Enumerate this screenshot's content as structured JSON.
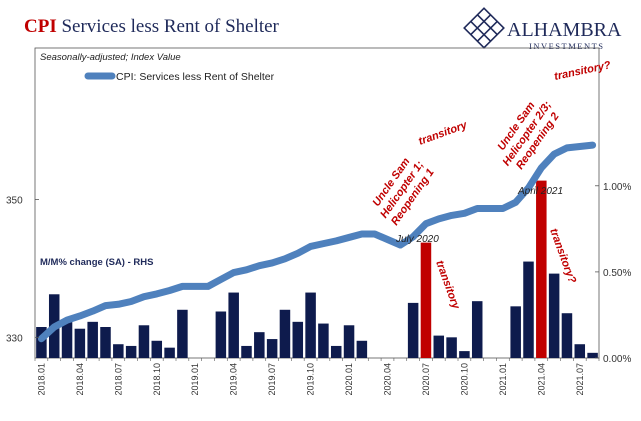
{
  "header": {
    "title_highlight": "CPI",
    "title_rest": " Services less Rent of Shelter",
    "brand_name": "ALHAMBRA",
    "brand_sub": "INVESTMENTS",
    "brand_logo": "diamond-lattice-logo"
  },
  "colors": {
    "line": "#4f81bd",
    "bar": "#0e1b4d",
    "bar_highlight": "#c00000",
    "title_accent": "#c00000",
    "annotation": "#c00000"
  },
  "chart_data": {
    "type": "line+bar",
    "note": "Seasonally-adjusted; Index Value",
    "rhs_label": "M/M% change (SA) - RHS",
    "legend": "CPI: Services less Rent of Shelter",
    "x_categories": [
      "2018.01",
      "2018.02",
      "2018.03",
      "2018.04",
      "2018.05",
      "2018.06",
      "2018.07",
      "2018.08",
      "2018.09",
      "2018.10",
      "2018.11",
      "2018.12",
      "2019.01",
      "2019.02",
      "2019.03",
      "2019.04",
      "2019.05",
      "2019.06",
      "2019.07",
      "2019.08",
      "2019.09",
      "2019.10",
      "2019.11",
      "2019.12",
      "2020.01",
      "2020.02",
      "2020.03",
      "2020.04",
      "2020.05",
      "2020.06",
      "2020.07",
      "2020.08",
      "2020.09",
      "2020.10",
      "2020.11",
      "2020.12",
      "2021.01",
      "2021.02",
      "2021.03",
      "2021.04",
      "2021.05",
      "2021.06",
      "2021.07",
      "2021.08"
    ],
    "x_tick_labels": [
      "2018.01",
      "2018.04",
      "2018.07",
      "2018.10",
      "2019.01",
      "2019.04",
      "2019.07",
      "2019.10",
      "2020.01",
      "2020.04",
      "2020.07",
      "2020.10",
      "2021.01",
      "2021.04",
      "2021.07"
    ],
    "left_axis": {
      "ticks": [
        "330",
        "350"
      ],
      "ylim": [
        327,
        372
      ]
    },
    "right_axis": {
      "ticks": [
        "0.00%",
        "0.50%",
        "1.00%"
      ],
      "ylim": [
        0,
        1.8
      ]
    },
    "line_series": {
      "name": "CPI: Services less Rent of Shelter",
      "values": [
        329.8,
        331.5,
        332.5,
        333.1,
        333.8,
        334.6,
        334.8,
        335.2,
        335.9,
        336.3,
        336.8,
        337.4,
        337.4,
        337.4,
        338.4,
        339.4,
        339.8,
        340.4,
        340.8,
        341.4,
        342.2,
        343.2,
        343.6,
        344.0,
        344.5,
        345.0,
        345.0,
        344.2,
        343.4,
        344.6,
        346.5,
        347.2,
        347.7,
        348.0,
        348.7,
        348.7,
        348.7,
        349.6,
        351.7,
        354.6,
        356.6,
        357.5,
        357.7,
        357.9
      ]
    },
    "bar_series": {
      "name": "M/M% change (SA)",
      "values": [
        0.18,
        0.37,
        0.21,
        0.17,
        0.21,
        0.18,
        0.08,
        0.07,
        0.19,
        0.1,
        0.06,
        0.28,
        0,
        0,
        0.27,
        0.38,
        0.07,
        0.15,
        0.11,
        0.28,
        0.21,
        0.38,
        0.2,
        0.07,
        0.19,
        0.1,
        0,
        0,
        0,
        0.32,
        0.67,
        0.13,
        0.12,
        0.04,
        0.33,
        0,
        0,
        0.3,
        0.56,
        1.03,
        0.49,
        0.26,
        0.08,
        0.03
      ],
      "highlight_indices": [
        30,
        39
      ]
    },
    "annotations": {
      "july_2020": "July 2020",
      "april_2021": "April 2021",
      "transitory_line_1": "transitory",
      "transitory_bar_1": "transitory",
      "helicopter_1": [
        "Uncle Sam",
        "Helicopter 1;",
        "Reopening 1"
      ],
      "helicopter_2": [
        "Uncle Sam",
        "Helicopter 2/3;",
        "Reopening 2"
      ],
      "transitory_bar_2": "transitory?",
      "transitory_line_2": "transitory?"
    }
  }
}
